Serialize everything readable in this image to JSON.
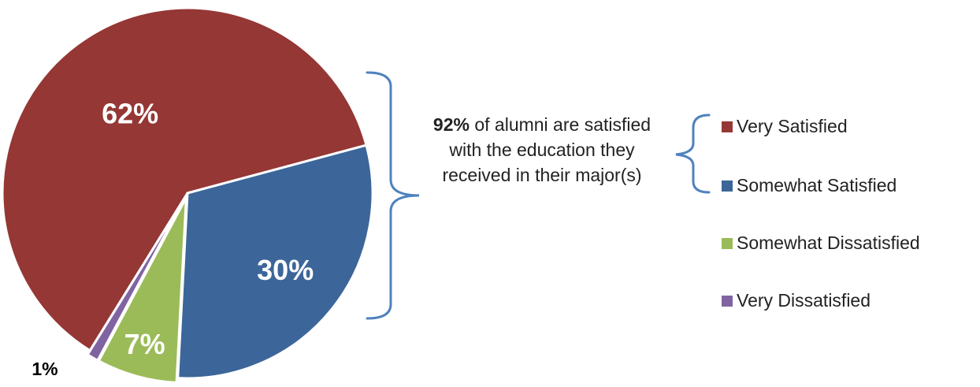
{
  "chart_data": {
    "type": "pie",
    "slices": [
      {
        "label": "Very Satisfied",
        "value": 62,
        "display": "62%",
        "color": "#953735"
      },
      {
        "label": "Somewhat Satisfied",
        "value": 30,
        "display": "30%",
        "color": "#3C6699"
      },
      {
        "label": "Somewhat Dissatisfied",
        "value": 7,
        "display": "7%",
        "color": "#9BBB59"
      },
      {
        "label": "Very Dissatisfied",
        "value": 1,
        "display": "1%",
        "color": "#8064A2"
      }
    ],
    "legend_position": "right",
    "annotation": {
      "bold": "92%",
      "text": " of alumni are satisfied with the education they received in their major(s)"
    },
    "bracket_color": "#4F81BD"
  }
}
